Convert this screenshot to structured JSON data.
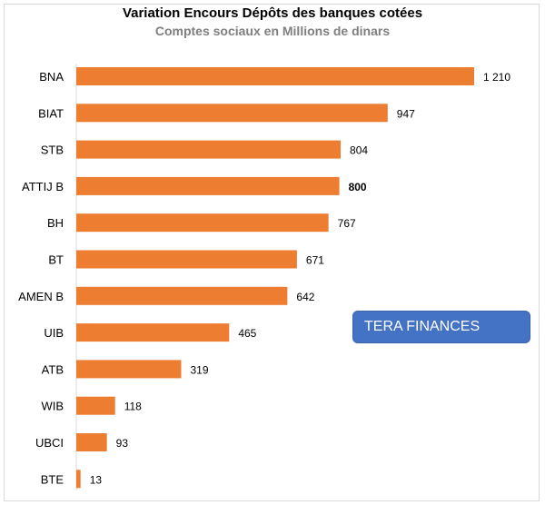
{
  "colors": {
    "bar": "#ed7d31",
    "highlight_label": "#548235",
    "watermark_bg": "#4472c4"
  },
  "watermark": {
    "text": "TERA FINANCES"
  },
  "chart_data": {
    "type": "bar",
    "orientation": "horizontal",
    "title": "Variation Encours Dépôts des banques cotées",
    "subtitle": "Comptes sociaux en Millions de dinars",
    "categories": [
      "BNA",
      "BIAT",
      "STB",
      "ATTIJ B",
      "BH",
      "BT",
      "AMEN B",
      "UIB",
      "ATB",
      "WIB",
      "UBCI",
      "BTE"
    ],
    "values": [
      1210,
      947,
      804,
      800,
      767,
      671,
      642,
      465,
      319,
      118,
      93,
      13
    ],
    "value_labels": [
      "1 210",
      "947",
      "804",
      "800",
      "767",
      "671",
      "642",
      "465",
      "319",
      "118",
      "93",
      "13"
    ],
    "highlighted_category": "ATTIJ B",
    "xlim": [
      0,
      1210
    ],
    "grid": false,
    "legend": "none"
  }
}
